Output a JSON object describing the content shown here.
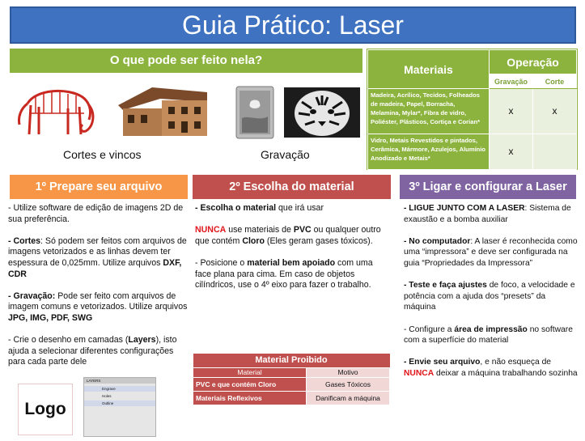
{
  "title": "Guia Prático: Laser",
  "what_section": {
    "heading": "O que pode ser feito nela?",
    "captions": [
      "Cortes e vincos",
      "Gravação"
    ]
  },
  "materials_table": {
    "header_materials": "Materiais",
    "header_operation": "Operação",
    "sub_engrave": "Gravação",
    "sub_cut": "Corte",
    "rows": [
      {
        "materials": "Madeira, Acrílico, Tecidos, Folheados de madeira, Papel, Borracha, Melamina, Mylar*, Fibra de vidro, Poliéster, Plásticos, Cortiça e Corian*",
        "engrave": "x",
        "cut": "x"
      },
      {
        "materials": "Vidro, Metais Revestidos e pintados, Cerâmica, Mármore, Azulejos, Alumínio Anodizado e Metais*",
        "engrave": "x",
        "cut": ""
      }
    ]
  },
  "step1": {
    "heading": "1º Prepare seu arquivo",
    "p1": "- Utilize software de edição de imagens 2D de sua preferência.",
    "p2_label": "- Cortes",
    "p2_text": ": Só podem ser feitos com arquivos de imagens vetorizados e as linhas devem ter espessura de 0,025mm. Utilize arquivos ",
    "p2_formats": "DXF, CDR",
    "p3_label": "- Gravação:",
    "p3_text": " Pode ser feito com arquivos de imagem comuns e vetorizados. Utilize arquivos ",
    "p3_formats": "JPG, IMG, PDF, SWG",
    "p4_a": "- Crie o desenho em camadas (",
    "p4_layers": "Layers",
    "p4_b": "), isto ajuda a selecionar diferentes configurações para cada parte dele",
    "logo_text": "Logo",
    "layers_panel": {
      "title": "LAYERS",
      "rows": [
        "Engrave",
        "Holes",
        "Outline"
      ]
    }
  },
  "step2": {
    "heading": "2º Escolha do material",
    "p1_label": "- Escolha o material",
    "p1_text": " que irá usar",
    "p2_never": "NUNCA",
    "p2_a": " use materiais de ",
    "p2_pvc": "PVC",
    "p2_b": " ou qualquer outro que contém ",
    "p2_chlorine": "Cloro",
    "p2_c": " (Eles geram gases tóxicos).",
    "p3_a": "- Posicione o ",
    "p3_bold": "material bem apoiado",
    "p3_b": " com uma face plana para cima. Em caso de objetos cilíndricos, use o 4º eixo para fazer o trabalho.",
    "forbidden": {
      "title": "Material Proibido",
      "col_material": "Material",
      "col_reason": "Motivo",
      "rows": [
        {
          "material": "PVC e que contém Cloro",
          "reason": "Gases Tóxicos"
        },
        {
          "material": "Materiais Reflexivos",
          "reason": "Danificam a máquina"
        }
      ]
    }
  },
  "step3": {
    "heading": "3º Ligar e configurar a Laser",
    "p1_label": "- LIGUE JUNTO COM A LASER",
    "p1_text": ": Sistema de exaustão e a bomba auxiliar",
    "p2_label": "- No computador",
    "p2_text": ": A laser é reconhecida como uma “impressora” e deve ser configurada na guia “Propriedades da Impressora”",
    "p3_label": "- Teste e faça ajustes",
    "p3_text": " de foco, a velocidade e potência com a ajuda dos “presets” da máquina",
    "p4_a": "- Configure a ",
    "p4_bold": "área de impressão",
    "p4_b": " no software com a superfície do material",
    "p5_label": "- Envie seu arquivo",
    "p5_a": ", e não esqueça de ",
    "p5_never": "NUNCA",
    "p5_b": " deixar a máquina trabalhando sozinha"
  },
  "colors": {
    "title_blue": "#3f73c1",
    "green": "#8db33f",
    "orange": "#f79646",
    "red": "#c0504d",
    "purple": "#8064a2",
    "warning_red": "#e0161b"
  }
}
